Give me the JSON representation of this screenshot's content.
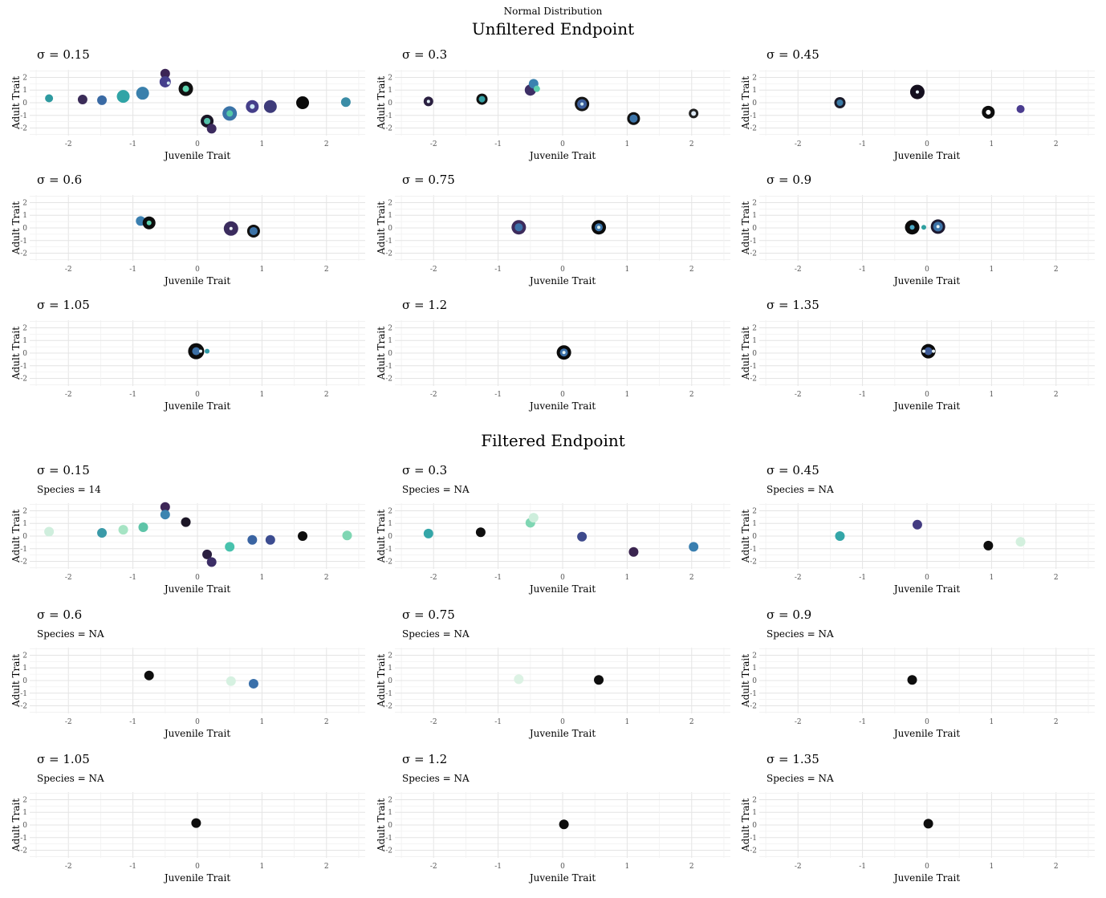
{
  "figure": {
    "suptitle": "Normal Distribution",
    "sections": [
      "Unfiltered Endpoint",
      "Filtered Endpoint"
    ]
  },
  "chart_data": [
    {
      "section": "Unfiltered Endpoint",
      "type": "scatter",
      "xlabel": "Juvenile Trait",
      "ylabel": "Adult Trait",
      "xlim": [
        -2.6,
        2.6
      ],
      "ylim": [
        -2.6,
        2.6
      ],
      "xticks": [
        -2,
        -1,
        0,
        1,
        2
      ],
      "yticks": [
        -2,
        -1,
        0,
        1,
        2
      ],
      "panels": [
        {
          "title": "σ = 0.15",
          "points": [
            {
              "x": -2.3,
              "y": 0.35,
              "size": 5,
              "color": "#2e9aa0"
            },
            {
              "x": -1.78,
              "y": 0.25,
              "size": 6,
              "color": "#3a2c58"
            },
            {
              "x": -1.48,
              "y": 0.2,
              "size": 6,
              "color": "#3a6aa4"
            },
            {
              "x": -1.15,
              "y": 0.5,
              "size": 8,
              "color": "#30a4a6"
            },
            {
              "x": -0.85,
              "y": 0.75,
              "size": 8,
              "color": "#3a80ac"
            },
            {
              "x": -0.5,
              "y": 2.3,
              "size": 6,
              "color": "#3c2555"
            },
            {
              "x": -0.5,
              "y": 1.65,
              "size": 7,
              "color": "#453f8c"
            },
            {
              "x": -0.45,
              "y": 1.55,
              "size": 2,
              "color": "#cfe6f0"
            },
            {
              "x": -0.18,
              "y": 1.1,
              "size": 9,
              "color": "#111111"
            },
            {
              "x": -0.18,
              "y": 1.1,
              "size": 4,
              "color": "#5cd3ae"
            },
            {
              "x": 0.15,
              "y": -1.45,
              "size": 8,
              "color": "#1b1626"
            },
            {
              "x": 0.15,
              "y": -1.45,
              "size": 4,
              "color": "#54c1aa"
            },
            {
              "x": 0.22,
              "y": -2.05,
              "size": 6,
              "color": "#3c2b5f"
            },
            {
              "x": 0.5,
              "y": -0.85,
              "size": 9,
              "color": "#3a74a8"
            },
            {
              "x": 0.5,
              "y": -0.85,
              "size": 4,
              "color": "#54c8a8"
            },
            {
              "x": 0.85,
              "y": -0.3,
              "size": 8,
              "color": "#453f8a"
            },
            {
              "x": 0.85,
              "y": -0.3,
              "size": 3,
              "color": "#cde8f5"
            },
            {
              "x": 1.13,
              "y": -0.3,
              "size": 8,
              "color": "#3e3b7a"
            },
            {
              "x": 1.63,
              "y": 0.0,
              "size": 8,
              "color": "#0a0a0a"
            },
            {
              "x": 2.3,
              "y": 0.05,
              "size": 6,
              "color": "#3a8ca6"
            }
          ]
        },
        {
          "title": "σ = 0.3",
          "points": [
            {
              "x": -2.08,
              "y": 0.1,
              "size": 6,
              "color": "#2a1f40"
            },
            {
              "x": -2.08,
              "y": 0.1,
              "size": 2,
              "color": "#dfeef5"
            },
            {
              "x": -1.25,
              "y": 0.28,
              "size": 7,
              "color": "#111111"
            },
            {
              "x": -1.25,
              "y": 0.28,
              "size": 4,
              "color": "#34a0a4"
            },
            {
              "x": -0.5,
              "y": 1.0,
              "size": 7,
              "color": "#3d2f66"
            },
            {
              "x": -0.45,
              "y": 1.5,
              "size": 6,
              "color": "#3a82b0"
            },
            {
              "x": -0.4,
              "y": 1.1,
              "size": 4,
              "color": "#5ed0ad"
            },
            {
              "x": 0.3,
              "y": -0.1,
              "size": 9,
              "color": "#151515"
            },
            {
              "x": 0.3,
              "y": -0.1,
              "size": 6,
              "color": "#3b5d9a"
            },
            {
              "x": 0.3,
              "y": -0.1,
              "size": 2,
              "color": "#cfeaf0"
            },
            {
              "x": 1.1,
              "y": -1.25,
              "size": 8,
              "color": "#111111"
            },
            {
              "x": 1.1,
              "y": -1.25,
              "size": 5,
              "color": "#3c74a8"
            },
            {
              "x": 2.03,
              "y": -0.85,
              "size": 6,
              "color": "#222222"
            },
            {
              "x": 2.03,
              "y": -0.85,
              "size": 3,
              "color": "#dde9f5"
            }
          ]
        },
        {
          "title": "σ = 0.45",
          "points": [
            {
              "x": -1.35,
              "y": 0.0,
              "size": 7,
              "color": "#1b1b2a"
            },
            {
              "x": -1.35,
              "y": 0.0,
              "size": 4,
              "color": "#3a7aa6"
            },
            {
              "x": -0.15,
              "y": 0.85,
              "size": 9,
              "color": "#140f1e"
            },
            {
              "x": -0.15,
              "y": 0.85,
              "size": 2,
              "color": "#e6f1f7"
            },
            {
              "x": 0.95,
              "y": -0.75,
              "size": 8,
              "color": "#0e0e0e"
            },
            {
              "x": 0.95,
              "y": -0.75,
              "size": 3,
              "color": "#ffffff"
            },
            {
              "x": 1.45,
              "y": -0.5,
              "size": 5,
              "color": "#4a3c8f"
            }
          ]
        },
        {
          "title": "σ = 0.6",
          "points": [
            {
              "x": -0.88,
              "y": 0.55,
              "size": 6,
              "color": "#3a7fb0"
            },
            {
              "x": -0.75,
              "y": 0.4,
              "size": 8,
              "color": "#0c0c0c"
            },
            {
              "x": -0.75,
              "y": 0.4,
              "size": 3,
              "color": "#5ad0ad"
            },
            {
              "x": 0.52,
              "y": -0.05,
              "size": 9,
              "color": "#3b2c5e"
            },
            {
              "x": 0.52,
              "y": -0.05,
              "size": 2,
              "color": "#eef4f8"
            },
            {
              "x": 0.87,
              "y": -0.25,
              "size": 8,
              "color": "#111111"
            },
            {
              "x": 0.87,
              "y": -0.25,
              "size": 5,
              "color": "#3c73a8"
            }
          ]
        },
        {
          "title": "σ = 0.75",
          "points": [
            {
              "x": -0.68,
              "y": 0.05,
              "size": 9,
              "color": "#3d2b5c"
            },
            {
              "x": -0.68,
              "y": 0.05,
              "size": 5,
              "color": "#3c70a8"
            },
            {
              "x": 0.56,
              "y": 0.05,
              "size": 9,
              "color": "#0b0b0b"
            },
            {
              "x": 0.56,
              "y": 0.05,
              "size": 5,
              "color": "#3c74a8"
            },
            {
              "x": 0.56,
              "y": 0.05,
              "size": 2,
              "color": "#d8efee"
            }
          ]
        },
        {
          "title": "σ = 0.9",
          "points": [
            {
              "x": -0.23,
              "y": 0.05,
              "size": 9,
              "color": "#0b0b0b"
            },
            {
              "x": -0.23,
              "y": 0.05,
              "size": 3,
              "color": "#4aa8c4"
            },
            {
              "x": -0.05,
              "y": 0.05,
              "size": 3,
              "color": "#2fa0a0"
            },
            {
              "x": 0.17,
              "y": 0.1,
              "size": 9,
              "color": "#1d1930"
            },
            {
              "x": 0.17,
              "y": 0.1,
              "size": 6,
              "color": "#3c73a8"
            },
            {
              "x": 0.17,
              "y": 0.1,
              "size": 2,
              "color": "#e9f4f8"
            }
          ]
        },
        {
          "title": "σ = 1.05",
          "points": [
            {
              "x": -0.02,
              "y": 0.15,
              "size": 10,
              "color": "#0c0c0c"
            },
            {
              "x": -0.02,
              "y": 0.15,
              "size": 5,
              "color": "#3c6fa4"
            },
            {
              "x": 0.05,
              "y": 0.15,
              "size": 2,
              "color": "#e7f3f8"
            },
            {
              "x": 0.15,
              "y": 0.15,
              "size": 3,
              "color": "#2f9aa6"
            }
          ]
        },
        {
          "title": "σ = 1.2",
          "points": [
            {
              "x": 0.02,
              "y": 0.05,
              "size": 9,
              "color": "#0b0b0b"
            },
            {
              "x": 0.02,
              "y": 0.05,
              "size": 5,
              "color": "#3c70a8"
            },
            {
              "x": 0.02,
              "y": 0.05,
              "size": 2,
              "color": "#e5f4f6"
            }
          ]
        },
        {
          "title": "σ = 1.35",
          "points": [
            {
              "x": 0.02,
              "y": 0.15,
              "size": 9,
              "color": "#0b0b0b"
            },
            {
              "x": 0.02,
              "y": 0.15,
              "size": 5,
              "color": "#3d5a96"
            },
            {
              "x": -0.05,
              "y": 0.15,
              "size": 2,
              "color": "#e8f4f8"
            },
            {
              "x": 0.1,
              "y": 0.15,
              "size": 2,
              "color": "#e8f4f8"
            }
          ]
        }
      ]
    },
    {
      "section": "Filtered Endpoint",
      "type": "scatter",
      "xlabel": "Juvenile Trait",
      "ylabel": "Adult Trait",
      "xlim": [
        -2.6,
        2.6
      ],
      "ylim": [
        -2.6,
        2.6
      ],
      "xticks": [
        -2,
        -1,
        0,
        1,
        2
      ],
      "yticks": [
        -2,
        -1,
        0,
        1,
        2
      ],
      "panels": [
        {
          "title": "σ = 0.15",
          "subtitle": "Species = 14",
          "points": [
            {
              "x": -2.3,
              "y": 0.35,
              "size": 6,
              "color": "#cfeedd"
            },
            {
              "x": -1.48,
              "y": 0.25,
              "size": 6,
              "color": "#3a9aa8"
            },
            {
              "x": -1.15,
              "y": 0.5,
              "size": 6,
              "color": "#a6e4c4"
            },
            {
              "x": -0.84,
              "y": 0.7,
              "size": 6,
              "color": "#5ec4a8"
            },
            {
              "x": -0.5,
              "y": 2.3,
              "size": 6,
              "color": "#3d2657"
            },
            {
              "x": -0.5,
              "y": 1.7,
              "size": 6,
              "color": "#3b84b0"
            },
            {
              "x": -0.18,
              "y": 1.1,
              "size": 6,
              "color": "#1c1626"
            },
            {
              "x": 0.15,
              "y": -1.45,
              "size": 6,
              "color": "#2b1f40"
            },
            {
              "x": 0.22,
              "y": -2.05,
              "size": 6,
              "color": "#3c2e66"
            },
            {
              "x": 0.5,
              "y": -0.85,
              "size": 6,
              "color": "#48c2ad"
            },
            {
              "x": 0.85,
              "y": -0.3,
              "size": 6,
              "color": "#3a64a2"
            },
            {
              "x": 1.13,
              "y": -0.3,
              "size": 6,
              "color": "#3c4c90"
            },
            {
              "x": 1.63,
              "y": 0.0,
              "size": 6,
              "color": "#0d0d0d"
            },
            {
              "x": 2.32,
              "y": 0.05,
              "size": 6,
              "color": "#7fd6b3"
            }
          ]
        },
        {
          "title": "σ = 0.3",
          "subtitle": "Species = NA",
          "points": [
            {
              "x": -2.08,
              "y": 0.2,
              "size": 6,
              "color": "#34a6a8"
            },
            {
              "x": -1.27,
              "y": 0.3,
              "size": 6,
              "color": "#0e0e0e"
            },
            {
              "x": -0.5,
              "y": 1.05,
              "size": 6,
              "color": "#7fd6b3"
            },
            {
              "x": -0.45,
              "y": 1.45,
              "size": 6,
              "color": "#cdeedc"
            },
            {
              "x": 0.3,
              "y": -0.05,
              "size": 6,
              "color": "#3e4a8c"
            },
            {
              "x": 1.1,
              "y": -1.25,
              "size": 6,
              "color": "#3b2550"
            },
            {
              "x": 2.03,
              "y": -0.85,
              "size": 6,
              "color": "#3a7fb0"
            }
          ]
        },
        {
          "title": "σ = 0.45",
          "subtitle": "Species = NA",
          "points": [
            {
              "x": -1.35,
              "y": 0.0,
              "size": 6,
              "color": "#34a6a8"
            },
            {
              "x": -0.15,
              "y": 0.9,
              "size": 6,
              "color": "#443c82"
            },
            {
              "x": 0.95,
              "y": -0.75,
              "size": 6,
              "color": "#0e0e0e"
            },
            {
              "x": 1.45,
              "y": -0.45,
              "size": 6,
              "color": "#d3f0de"
            }
          ]
        },
        {
          "title": "σ = 0.6",
          "subtitle": "Species = NA",
          "points": [
            {
              "x": -0.75,
              "y": 0.4,
              "size": 6,
              "color": "#0e0e0e"
            },
            {
              "x": 0.52,
              "y": -0.05,
              "size": 6,
              "color": "#d6f1e1"
            },
            {
              "x": 0.87,
              "y": -0.25,
              "size": 6,
              "color": "#3a70aa"
            }
          ]
        },
        {
          "title": "σ = 0.75",
          "subtitle": "Species = NA",
          "points": [
            {
              "x": -0.68,
              "y": 0.1,
              "size": 6,
              "color": "#dcf2e4"
            },
            {
              "x": 0.56,
              "y": 0.05,
              "size": 6,
              "color": "#0e0e0e"
            }
          ]
        },
        {
          "title": "σ = 0.9",
          "subtitle": "Species = NA",
          "points": [
            {
              "x": -0.23,
              "y": 0.05,
              "size": 6,
              "color": "#0e0e0e"
            }
          ]
        },
        {
          "title": "σ = 1.05",
          "subtitle": "Species = NA",
          "points": [
            {
              "x": -0.02,
              "y": 0.15,
              "size": 6,
              "color": "#0e0e0e"
            }
          ]
        },
        {
          "title": "σ = 1.2",
          "subtitle": "Species = NA",
          "points": [
            {
              "x": 0.02,
              "y": 0.05,
              "size": 6,
              "color": "#0e0e0e"
            }
          ]
        },
        {
          "title": "σ = 1.35",
          "subtitle": "Species = NA",
          "points": [
            {
              "x": 0.02,
              "y": 0.1,
              "size": 6,
              "color": "#0e0e0e"
            }
          ]
        }
      ]
    }
  ]
}
